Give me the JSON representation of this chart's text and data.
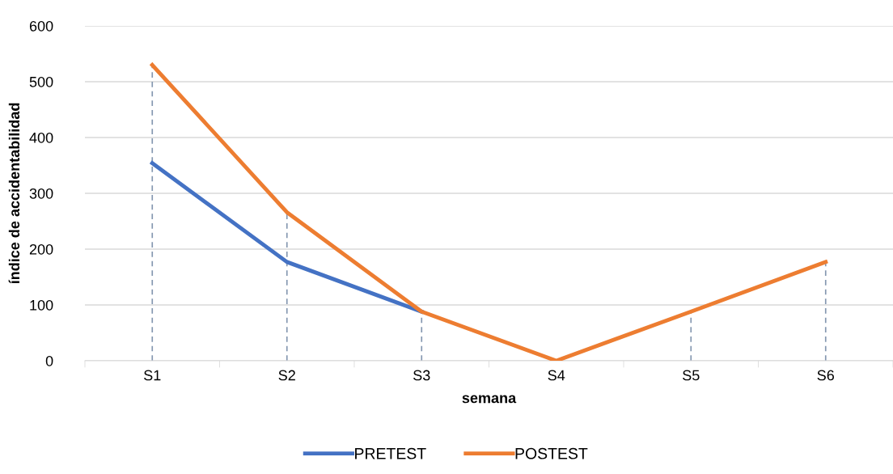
{
  "chart_data": {
    "type": "line",
    "xlabel": "semana",
    "ylabel": "índice de accidentabilidad",
    "categories": [
      "S1",
      "S2",
      "S3",
      "S4",
      "S5",
      "S6"
    ],
    "series": [
      {
        "name": "PRETEST",
        "color": "#4472c4",
        "values": [
          354,
          177,
          88,
          null,
          null,
          null
        ]
      },
      {
        "name": "POSTEST",
        "color": "#ed7d31",
        "values": [
          530,
          266,
          88,
          0,
          88,
          177
        ],
        "errors": [
          [
            0,
            530
          ],
          [
            0,
            266
          ],
          [
            0,
            88
          ],
          [
            0,
            0
          ],
          [
            0,
            88
          ],
          [
            0,
            177
          ]
        ]
      }
    ],
    "ylim": [
      0,
      600
    ],
    "yticks": [
      0,
      100,
      200,
      300,
      400,
      500,
      600
    ],
    "grid": "y",
    "legend": "bottom",
    "marker": "none",
    "line_style": "solid"
  }
}
